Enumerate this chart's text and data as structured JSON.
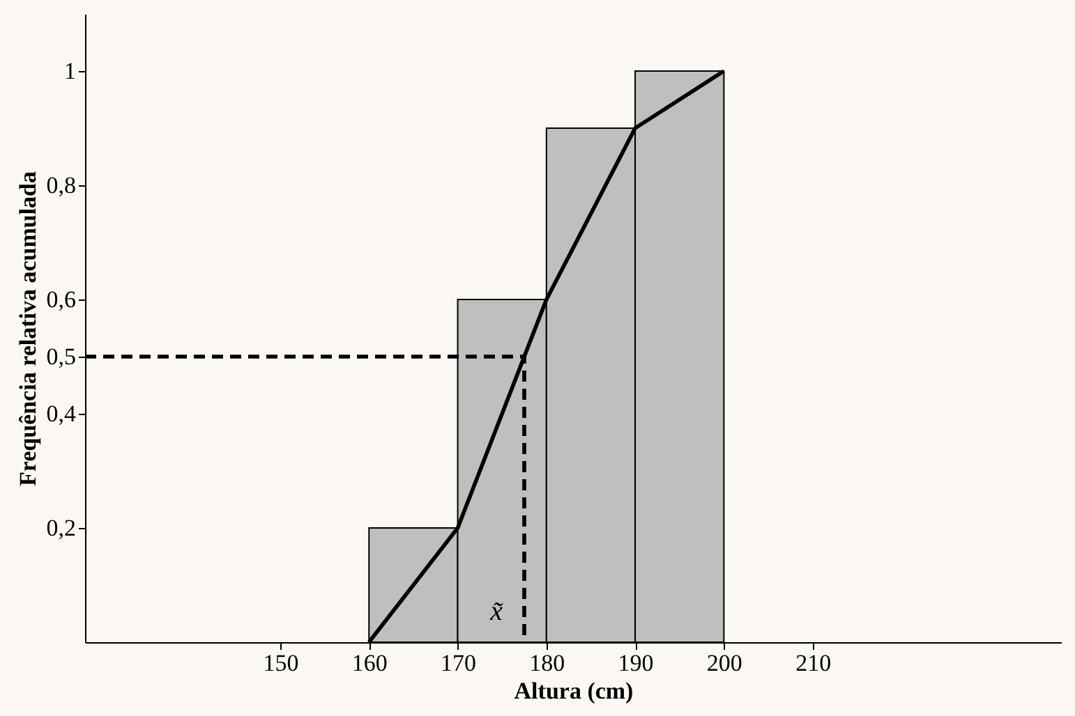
{
  "chart_data": {
    "type": "histogram",
    "xlabel": "Altura (cm)",
    "ylabel": "Frequência relativa acumulada",
    "bins": [
      160,
      170,
      180,
      190,
      200
    ],
    "values": [
      0.2,
      0.6,
      0.9,
      1
    ],
    "color": "#bfbfbf",
    "xlim": [
      128,
      238
    ],
    "xticks": [
      150,
      160,
      170,
      180,
      190,
      200,
      210
    ],
    "ylim": [
      0,
      1.1
    ],
    "yticks": [
      {
        "value": 0.2,
        "label": "0,2"
      },
      {
        "value": 0.4,
        "label": "0,4"
      },
      {
        "value": 0.5,
        "label": "0,5"
      },
      {
        "value": 0.6,
        "label": "0,6"
      },
      {
        "value": 0.8,
        "label": "0,8"
      },
      {
        "value": 1,
        "label": "1"
      }
    ],
    "series": [
      {
        "type": "line",
        "x": [
          160,
          170,
          180,
          190,
          200
        ],
        "values": [
          0,
          0.2,
          0.6,
          0.9,
          1
        ],
        "color": "#000000",
        "line_style": "solid"
      },
      {
        "type": "line",
        "x": [
          128,
          177.5,
          177.5
        ],
        "values": [
          0.5,
          0.5,
          0
        ],
        "color": "#000000",
        "line_style": "dashed"
      }
    ],
    "annotations": [
      {
        "text": "x̃",
        "x": 177.5,
        "y": 0
      }
    ],
    "grid": false
  }
}
